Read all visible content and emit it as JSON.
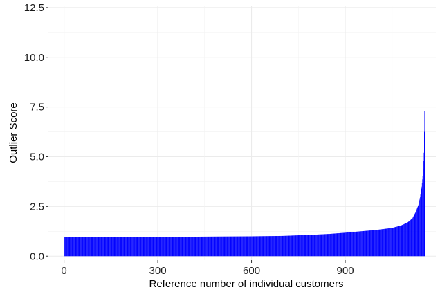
{
  "chart_data": {
    "type": "bar",
    "title": "",
    "xlabel": "Reference number of individual customers",
    "ylabel": "Outlier Score",
    "xlim": [
      -50,
      1190
    ],
    "ylim": [
      -0.2,
      12.6
    ],
    "x_ticks": [
      0,
      300,
      600,
      900
    ],
    "x_tick_labels": [
      "0",
      "300",
      "600",
      "900"
    ],
    "y_ticks": [
      0,
      2.5,
      5,
      7.5,
      10,
      12.5
    ],
    "y_tick_labels": [
      "0.0",
      "2.5",
      "5.0",
      "7.5",
      "10.0",
      "12.5"
    ],
    "grid": true,
    "legend": "none",
    "bar_color": "#0000ff",
    "n_customers": 1155,
    "profile_points": {
      "x": [
        0,
        200,
        400,
        600,
        700,
        750,
        800,
        850,
        900,
        950,
        1000,
        1050,
        1080,
        1100,
        1115,
        1125,
        1135,
        1140,
        1145,
        1150,
        1152,
        1154
      ],
      "y": [
        0.96,
        0.97,
        0.98,
        1.0,
        1.02,
        1.05,
        1.08,
        1.12,
        1.18,
        1.25,
        1.32,
        1.42,
        1.55,
        1.7,
        1.9,
        2.2,
        2.6,
        3.0,
        3.5,
        4.4,
        5.2,
        7.3
      ]
    }
  }
}
